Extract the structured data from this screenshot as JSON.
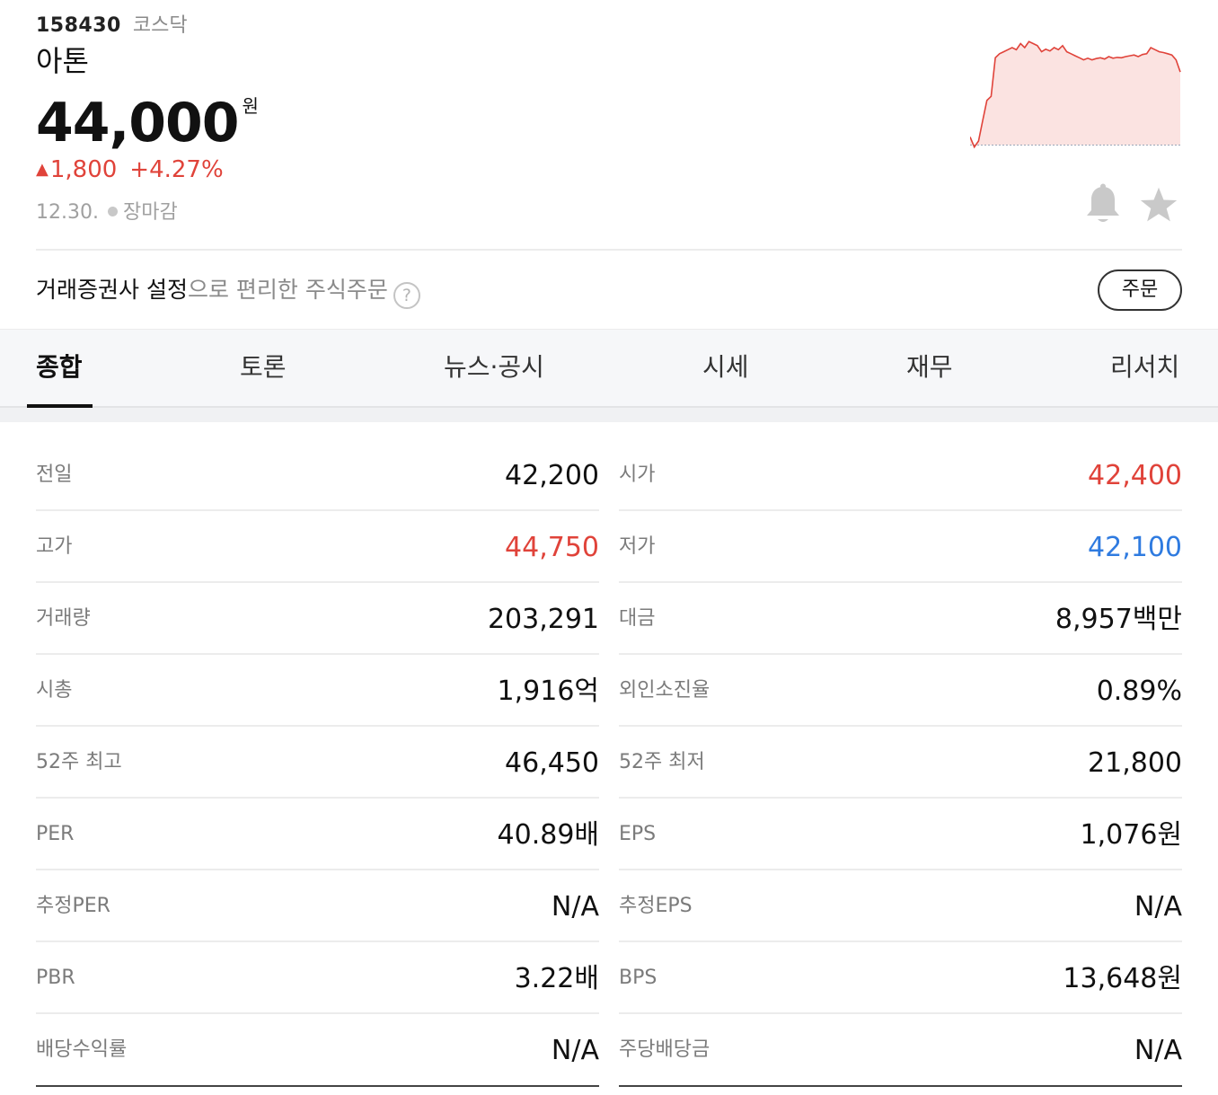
{
  "stock": {
    "code": "158430",
    "market": "코스닥",
    "name": "아톤",
    "price": "44,000",
    "price_unit": "원",
    "change_arrow": "▲",
    "change": "1,800",
    "change_pct": "+4.27%",
    "date": "12.30.",
    "status": "장마감"
  },
  "colors": {
    "up": "#e0433a",
    "down": "#2f7be0",
    "chart_fill": "#fbe3e1"
  },
  "icons": {
    "alert": "bell-icon",
    "favorite": "star-icon",
    "help": "help-icon"
  },
  "order_bar": {
    "text_main": "거래증권사 설정",
    "text_muted": "으로 편리한 주식주문",
    "help_glyph": "?",
    "button": "주문"
  },
  "tabs": [
    "종합",
    "토론",
    "뉴스·공시",
    "시세",
    "재무",
    "리서치"
  ],
  "active_tab": "종합",
  "stats": [
    {
      "left": {
        "label": "전일",
        "value": "42,200"
      },
      "right": {
        "label": "시가",
        "value": "42,400"
      }
    },
    {
      "left": {
        "label": "고가",
        "value": "44,750"
      },
      "right": {
        "label": "저가",
        "value": "42,100"
      }
    },
    {
      "left": {
        "label": "거래량",
        "value": "203,291"
      },
      "right": {
        "label": "대금",
        "value": "8,957백만"
      }
    },
    {
      "left": {
        "label": "시총",
        "value": "1,916억"
      },
      "right": {
        "label": "외인소진율",
        "value": "0.89%"
      }
    },
    {
      "left": {
        "label": "52주 최고",
        "value": "46,450"
      },
      "right": {
        "label": "52주 최저",
        "value": "21,800"
      }
    },
    {
      "left": {
        "label": "PER",
        "value": "40.89배"
      },
      "right": {
        "label": "EPS",
        "value": "1,076원"
      }
    },
    {
      "left": {
        "label": "추정PER",
        "value": "N/A"
      },
      "right": {
        "label": "추정EPS",
        "value": "N/A"
      }
    },
    {
      "left": {
        "label": "PBR",
        "value": "3.22배"
      },
      "right": {
        "label": "BPS",
        "value": "13,648원"
      }
    },
    {
      "left": {
        "label": "배당수익률",
        "value": "N/A"
      },
      "right": {
        "label": "주당배당금",
        "value": "N/A"
      }
    }
  ],
  "chart_data": {
    "type": "area",
    "baseline": 42200,
    "x": [
      0,
      0.02,
      0.04,
      0.06,
      0.08,
      0.1,
      0.12,
      0.14,
      0.16,
      0.18,
      0.2,
      0.22,
      0.24,
      0.26,
      0.28,
      0.3,
      0.32,
      0.34,
      0.36,
      0.38,
      0.4,
      0.42,
      0.44,
      0.46,
      0.48,
      0.5,
      0.52,
      0.54,
      0.56,
      0.58,
      0.6,
      0.62,
      0.64,
      0.66,
      0.68,
      0.7,
      0.72,
      0.74,
      0.76,
      0.78,
      0.8,
      0.82,
      0.84,
      0.86,
      0.88,
      0.9,
      0.92,
      0.94,
      0.96,
      0.98,
      1.0
    ],
    "y": [
      42400,
      42150,
      42300,
      42800,
      43300,
      43400,
      44350,
      44450,
      44500,
      44550,
      44600,
      44550,
      44700,
      44600,
      44750,
      44700,
      44650,
      44500,
      44560,
      44520,
      44600,
      44550,
      44650,
      44500,
      44450,
      44400,
      44350,
      44300,
      44340,
      44300,
      44330,
      44350,
      44320,
      44380,
      44340,
      44360,
      44350,
      44380,
      44400,
      44420,
      44380,
      44430,
      44450,
      44600,
      44550,
      44500,
      44480,
      44450,
      44420,
      44300,
      44000
    ]
  }
}
